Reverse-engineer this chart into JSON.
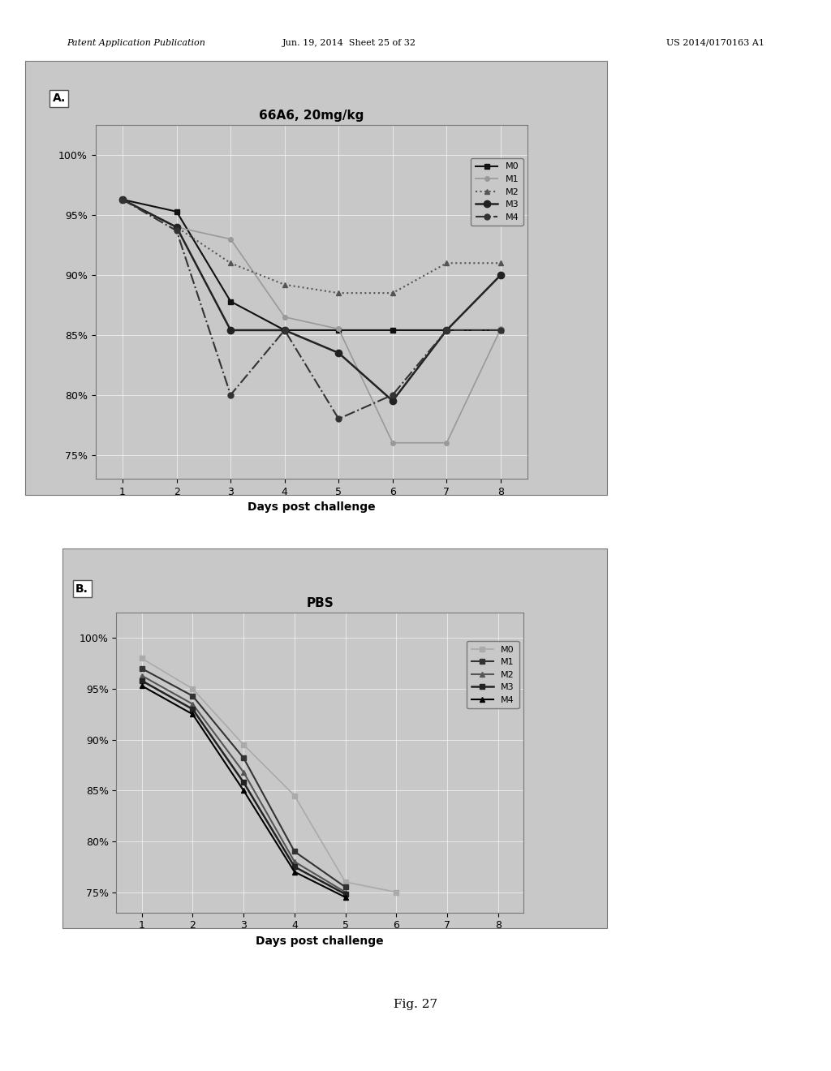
{
  "panel_A": {
    "title": "66A6, 20mg/kg",
    "xlabel": "Days post challenge",
    "xlim": [
      0.5,
      8.5
    ],
    "ylim": [
      0.73,
      1.025
    ],
    "yticks": [
      0.75,
      0.8,
      0.85,
      0.9,
      0.95,
      1.0
    ],
    "ytick_labels": [
      "75%",
      "80%",
      "85%",
      "90%",
      "95%",
      "100%"
    ],
    "xticks": [
      1,
      2,
      3,
      4,
      5,
      6,
      7,
      8
    ],
    "series": [
      {
        "label": "M0",
        "x": [
          1,
          2,
          3,
          4,
          5,
          6,
          7,
          8
        ],
        "y": [
          0.963,
          0.953,
          0.878,
          0.854,
          0.854,
          0.854,
          0.854,
          0.854
        ],
        "color": "#111111",
        "marker": "s",
        "linestyle": "-",
        "linewidth": 1.5,
        "markersize": 5
      },
      {
        "label": "M1",
        "x": [
          1,
          2,
          3,
          4,
          5,
          6,
          7,
          8
        ],
        "y": [
          0.963,
          0.94,
          0.93,
          0.865,
          0.855,
          0.76,
          0.76,
          0.855
        ],
        "color": "#999999",
        "marker": "o",
        "linestyle": "-",
        "linewidth": 1.2,
        "markersize": 4
      },
      {
        "label": "M2",
        "x": [
          1,
          2,
          3,
          4,
          5,
          6,
          7,
          8
        ],
        "y": [
          0.963,
          0.94,
          0.91,
          0.892,
          0.885,
          0.885,
          0.91,
          0.91
        ],
        "color": "#555555",
        "marker": "^",
        "linestyle": ":",
        "linewidth": 1.5,
        "markersize": 5
      },
      {
        "label": "M3",
        "x": [
          1,
          2,
          3,
          4,
          5,
          6,
          7,
          8
        ],
        "y": [
          0.963,
          0.94,
          0.854,
          0.854,
          0.835,
          0.795,
          0.854,
          0.9
        ],
        "color": "#222222",
        "marker": "o",
        "linestyle": "-",
        "linewidth": 1.8,
        "markersize": 6
      },
      {
        "label": "M4",
        "x": [
          1,
          2,
          3,
          4,
          5,
          6,
          7,
          8
        ],
        "y": [
          0.963,
          0.937,
          0.8,
          0.854,
          0.78,
          0.8,
          0.854,
          0.854
        ],
        "color": "#333333",
        "marker": "o",
        "linestyle": "-.",
        "linewidth": 1.5,
        "markersize": 5
      }
    ]
  },
  "panel_B": {
    "title": "PBS",
    "xlabel": "Days post challenge",
    "xlim": [
      0.5,
      8.5
    ],
    "ylim": [
      0.73,
      1.025
    ],
    "yticks": [
      0.75,
      0.8,
      0.85,
      0.9,
      0.95,
      1.0
    ],
    "ytick_labels": [
      "75%",
      "80%",
      "85%",
      "90%",
      "95%",
      "100%"
    ],
    "xticks": [
      1,
      2,
      3,
      4,
      5,
      6,
      7,
      8
    ],
    "series": [
      {
        "label": "M0",
        "x": [
          1,
          2,
          3,
          4,
          5,
          6
        ],
        "y": [
          0.98,
          0.95,
          0.895,
          0.845,
          0.76,
          0.75
        ],
        "color": "#aaaaaa",
        "marker": "s",
        "linestyle": "-",
        "linewidth": 1.2,
        "markersize": 4
      },
      {
        "label": "M1",
        "x": [
          1,
          2,
          3,
          4,
          5
        ],
        "y": [
          0.97,
          0.943,
          0.882,
          0.79,
          0.755
        ],
        "color": "#333333",
        "marker": "s",
        "linestyle": "-",
        "linewidth": 1.5,
        "markersize": 5
      },
      {
        "label": "M2",
        "x": [
          1,
          2,
          3,
          4,
          5
        ],
        "y": [
          0.963,
          0.935,
          0.868,
          0.78,
          0.75
        ],
        "color": "#555555",
        "marker": "^",
        "linestyle": "-",
        "linewidth": 1.5,
        "markersize": 5
      },
      {
        "label": "M3",
        "x": [
          1,
          2,
          3,
          4,
          5
        ],
        "y": [
          0.958,
          0.93,
          0.858,
          0.775,
          0.748
        ],
        "color": "#222222",
        "marker": "s",
        "linestyle": "-",
        "linewidth": 1.8,
        "markersize": 5
      },
      {
        "label": "M4",
        "x": [
          1,
          2,
          3,
          4,
          5
        ],
        "y": [
          0.953,
          0.925,
          0.85,
          0.77,
          0.745
        ],
        "color": "#000000",
        "marker": "^",
        "linestyle": "-",
        "linewidth": 1.5,
        "markersize": 5
      }
    ]
  },
  "bg_gray": "#c8c8c8",
  "fig_bg": "#ffffff",
  "grid_color": "#ffffff",
  "header_left": "Patent Application Publication",
  "header_mid": "Jun. 19, 2014  Sheet 25 of 32",
  "header_right": "US 2014/0170163 A1",
  "footer_text": "Fig. 27",
  "label_A": "A.",
  "label_B": "B."
}
